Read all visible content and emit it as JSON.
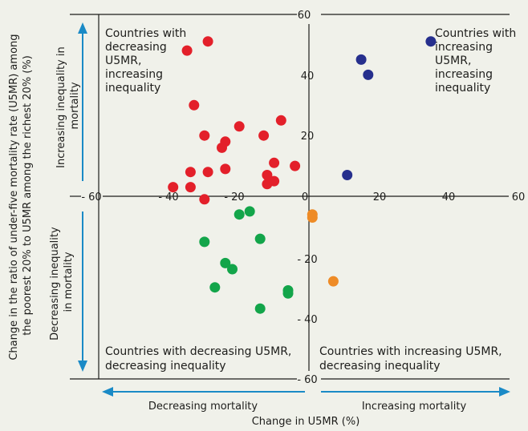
{
  "chart_data": {
    "type": "scatter",
    "xlabel": "Change in U5MR (%)",
    "ylabel": "Change in the ratio of under-five mortality rate (U5MR) among the poorest 20% to U5MR among the richest 20% (%)",
    "xlim": [
      -60,
      60
    ],
    "ylim": [
      -60,
      60
    ],
    "x_ticks": [
      -60,
      -40,
      -20,
      0,
      20,
      40,
      60
    ],
    "y_ticks": [
      60,
      40,
      20,
      -20,
      -40,
      -60
    ],
    "x_tick_labels": [
      "- 60",
      "- 40",
      "- 20",
      "0",
      "20",
      "40",
      "60"
    ],
    "y_tick_labels": [
      "60",
      "40",
      "20",
      "- 20",
      "- 40",
      "- 60"
    ],
    "grid": false,
    "quadrant_labels": {
      "top_left": [
        "Countries with",
        "decreasing",
        "U5MR,",
        "increasing",
        "inequality"
      ],
      "top_right": [
        "Countries with",
        "increasing",
        "U5MR,",
        "increasing",
        "inequality"
      ],
      "bottom_left": [
        "Countries with decreasing U5MR,",
        "decreasing inequality"
      ],
      "bottom_right": [
        "Countries with increasing U5MR,",
        "decreasing inequality"
      ]
    },
    "arrow_labels": {
      "up": [
        "Increasing inequality in",
        "mortality"
      ],
      "down": [
        "Decreasing inequality",
        "in mortality"
      ],
      "left": "Decreasing mortality",
      "right": "Increasing mortality"
    },
    "colors": {
      "red": "#e3202a",
      "blue": "#262f8d",
      "green": "#13a54a",
      "orange": "#ee8b26",
      "arrow": "#1a8ac6",
      "axis": "#1d1d1b",
      "background": "#f0f1ea"
    },
    "series": [
      {
        "color": "red",
        "points": [
          {
            "x": -29,
            "y": 51
          },
          {
            "x": -35,
            "y": 48
          },
          {
            "x": -33,
            "y": 30
          },
          {
            "x": -8,
            "y": 25
          },
          {
            "x": -20,
            "y": 23
          },
          {
            "x": -13,
            "y": 20
          },
          {
            "x": -30,
            "y": 20
          },
          {
            "x": -24,
            "y": 18
          },
          {
            "x": -25,
            "y": 16
          },
          {
            "x": -10,
            "y": 11
          },
          {
            "x": -4,
            "y": 10
          },
          {
            "x": -24,
            "y": 9
          },
          {
            "x": -29,
            "y": 8
          },
          {
            "x": -34,
            "y": 8
          },
          {
            "x": -12,
            "y": 7
          },
          {
            "x": -10,
            "y": 5
          },
          {
            "x": -12,
            "y": 4
          },
          {
            "x": -34,
            "y": 3
          },
          {
            "x": -39,
            "y": 3
          },
          {
            "x": -30,
            "y": -1
          }
        ]
      },
      {
        "color": "blue",
        "points": [
          {
            "x": 35,
            "y": 51
          },
          {
            "x": 15,
            "y": 45
          },
          {
            "x": 17,
            "y": 40
          },
          {
            "x": 11,
            "y": 7
          }
        ]
      },
      {
        "color": "green",
        "points": [
          {
            "x": -17,
            "y": -5
          },
          {
            "x": -20,
            "y": -6
          },
          {
            "x": -30,
            "y": -15
          },
          {
            "x": -14,
            "y": -14
          },
          {
            "x": -24,
            "y": -22
          },
          {
            "x": -22,
            "y": -24
          },
          {
            "x": -27,
            "y": -30
          },
          {
            "x": -6,
            "y": -31
          },
          {
            "x": -6,
            "y": -32
          },
          {
            "x": -14,
            "y": -37
          }
        ]
      },
      {
        "color": "orange",
        "points": [
          {
            "x": 1,
            "y": -6
          },
          {
            "x": 1,
            "y": -7
          },
          {
            "x": 7,
            "y": -28
          }
        ]
      }
    ]
  }
}
